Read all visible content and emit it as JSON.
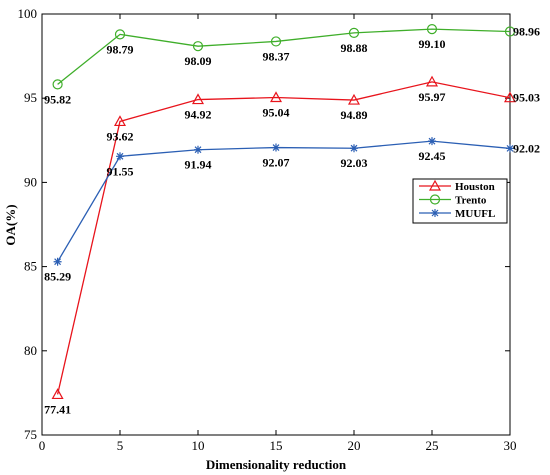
{
  "chart_data": {
    "type": "line",
    "title": "",
    "xlabel": "Dimensionality reduction",
    "ylabel": "OA(%)",
    "xlim": [
      0,
      30
    ],
    "ylim": [
      75,
      100
    ],
    "xticks": [
      "0",
      "5",
      "10",
      "15",
      "20",
      "25",
      "30"
    ],
    "yticks": [
      "75",
      "80",
      "85",
      "90",
      "95",
      "100"
    ],
    "grid": false,
    "legend_position": "right",
    "x": [
      1,
      5,
      10,
      15,
      20,
      25,
      30
    ],
    "series": [
      {
        "name": "Houston",
        "color": "#e8141c",
        "marker": "triangle",
        "values": [
          77.41,
          93.62,
          94.92,
          95.04,
          94.89,
          95.97,
          95.03
        ],
        "labels": [
          "77.41",
          "93.62",
          "94.92",
          "95.04",
          "94.89",
          "95.97",
          "95.03"
        ]
      },
      {
        "name": "Trento",
        "color": "#3fae2a",
        "marker": "circle",
        "values": [
          95.82,
          98.79,
          98.09,
          98.37,
          98.88,
          99.1,
          98.96
        ],
        "labels": [
          "95.82",
          "98.79",
          "98.09",
          "98.37",
          "98.88",
          "99.10",
          "98.96"
        ]
      },
      {
        "name": "MUUFL",
        "color": "#2b5fb4",
        "marker": "asterisk",
        "values": [
          85.29,
          91.55,
          91.94,
          92.07,
          92.03,
          92.45,
          92.02
        ],
        "labels": [
          "85.29",
          "91.55",
          "91.94",
          "92.07",
          "92.03",
          "92.45",
          "92.02"
        ]
      }
    ]
  }
}
